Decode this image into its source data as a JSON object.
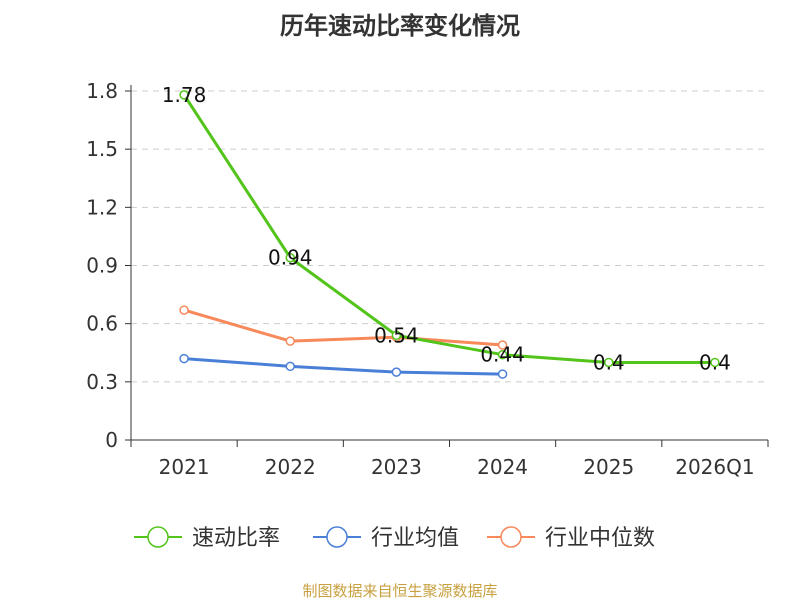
{
  "chart_data": {
    "type": "line",
    "title": "历年速动比率变化情况",
    "categories": [
      "2021",
      "2022",
      "2023",
      "2024",
      "2025",
      "2026Q1"
    ],
    "y_ticks": [
      "0",
      "0.3",
      "0.6",
      "0.9",
      "1.2",
      "1.5",
      "1.8"
    ],
    "ylim": [
      0,
      1.8
    ],
    "xlabel": "",
    "ylabel": "",
    "grid": true,
    "legend_position": "bottom",
    "series": [
      {
        "name": "速动比率",
        "color": "#52c41a",
        "values": [
          1.78,
          0.94,
          0.54,
          0.44,
          0.4,
          0.4
        ],
        "labels": [
          "1.78",
          "0.94",
          "0.54",
          "0.44",
          "0.4",
          "0.4"
        ]
      },
      {
        "name": "行业均值",
        "color": "#4a7fd8",
        "values": [
          0.42,
          0.38,
          0.35,
          0.34,
          null,
          null
        ]
      },
      {
        "name": "行业中位数",
        "color": "#f7895a",
        "values": [
          0.67,
          0.51,
          0.53,
          0.49,
          null,
          null
        ]
      }
    ],
    "source": "制图数据来自恒生聚源数据库"
  }
}
